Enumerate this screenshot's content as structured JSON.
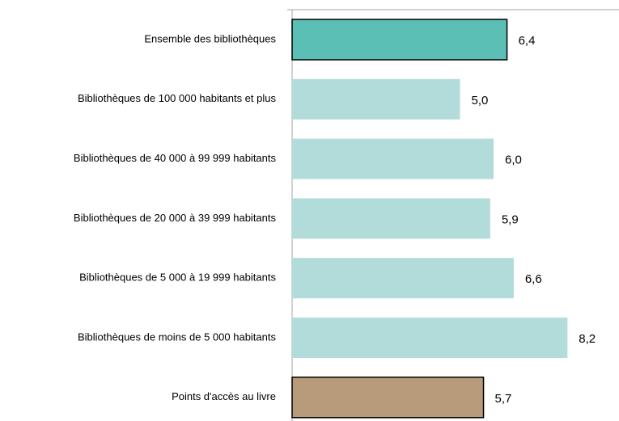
{
  "chart_data": {
    "type": "hbar",
    "categories": [
      "Ensemble des bibliothèques",
      "Bibliothèques de 100 000 habitants et plus",
      "Bibliothèques de 40 000 à 99 999 habitants",
      "Bibliothèques de 20 000 à 39 999 habitants",
      "Bibliothèques de 5 000 à 19 999 habitants",
      "Bibliothèques de moins de 5 000 habitants",
      "Points d'accès au livre"
    ],
    "values": [
      6.4,
      5.0,
      6.0,
      5.9,
      6.6,
      8.2,
      5.7
    ],
    "value_labels": [
      "6,4",
      "5,0",
      "6,0",
      "5,9",
      "6,6",
      "8,2",
      "5,7"
    ],
    "colors": [
      "#5bbfb5",
      "#b2dcda",
      "#b2dcda",
      "#b2dcda",
      "#b2dcda",
      "#b2dcda",
      "#b89b7a"
    ],
    "outlined": [
      true,
      false,
      false,
      false,
      false,
      false,
      true
    ]
  }
}
